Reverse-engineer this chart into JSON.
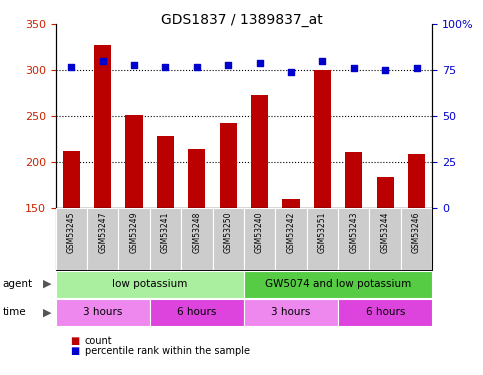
{
  "title": "GDS1837 / 1389837_at",
  "samples": [
    "GSM53245",
    "GSM53247",
    "GSM53249",
    "GSM53241",
    "GSM53248",
    "GSM53250",
    "GSM53240",
    "GSM53242",
    "GSM53251",
    "GSM53243",
    "GSM53244",
    "GSM53246"
  ],
  "counts": [
    212,
    328,
    251,
    228,
    214,
    243,
    273,
    160,
    300,
    211,
    184,
    209
  ],
  "percentiles": [
    77,
    80,
    78,
    77,
    77,
    78,
    79,
    74,
    80,
    76,
    75,
    76
  ],
  "ylim_left": [
    150,
    350
  ],
  "ylim_right": [
    0,
    100
  ],
  "yticks_left": [
    150,
    200,
    250,
    300,
    350
  ],
  "yticks_right": [
    0,
    25,
    50,
    75,
    100
  ],
  "bar_color": "#bb0000",
  "dot_color": "#0000cc",
  "agent_groups": [
    {
      "label": "low potassium",
      "start": 0,
      "end": 6,
      "color": "#aaeea0"
    },
    {
      "label": "GW5074 and low potassium",
      "start": 6,
      "end": 12,
      "color": "#55cc44"
    }
  ],
  "time_groups": [
    {
      "label": "3 hours",
      "start": 0,
      "end": 3,
      "color": "#ee88ee"
    },
    {
      "label": "6 hours",
      "start": 3,
      "end": 6,
      "color": "#dd44dd"
    },
    {
      "label": "3 hours",
      "start": 6,
      "end": 9,
      "color": "#ee88ee"
    },
    {
      "label": "6 hours",
      "start": 9,
      "end": 12,
      "color": "#dd44dd"
    }
  ],
  "legend_count_color": "#bb0000",
  "legend_dot_color": "#0000cc",
  "background_color": "#ffffff",
  "sample_bg_color": "#cccccc",
  "grid_dotted_vals": [
    200,
    250,
    300
  ]
}
